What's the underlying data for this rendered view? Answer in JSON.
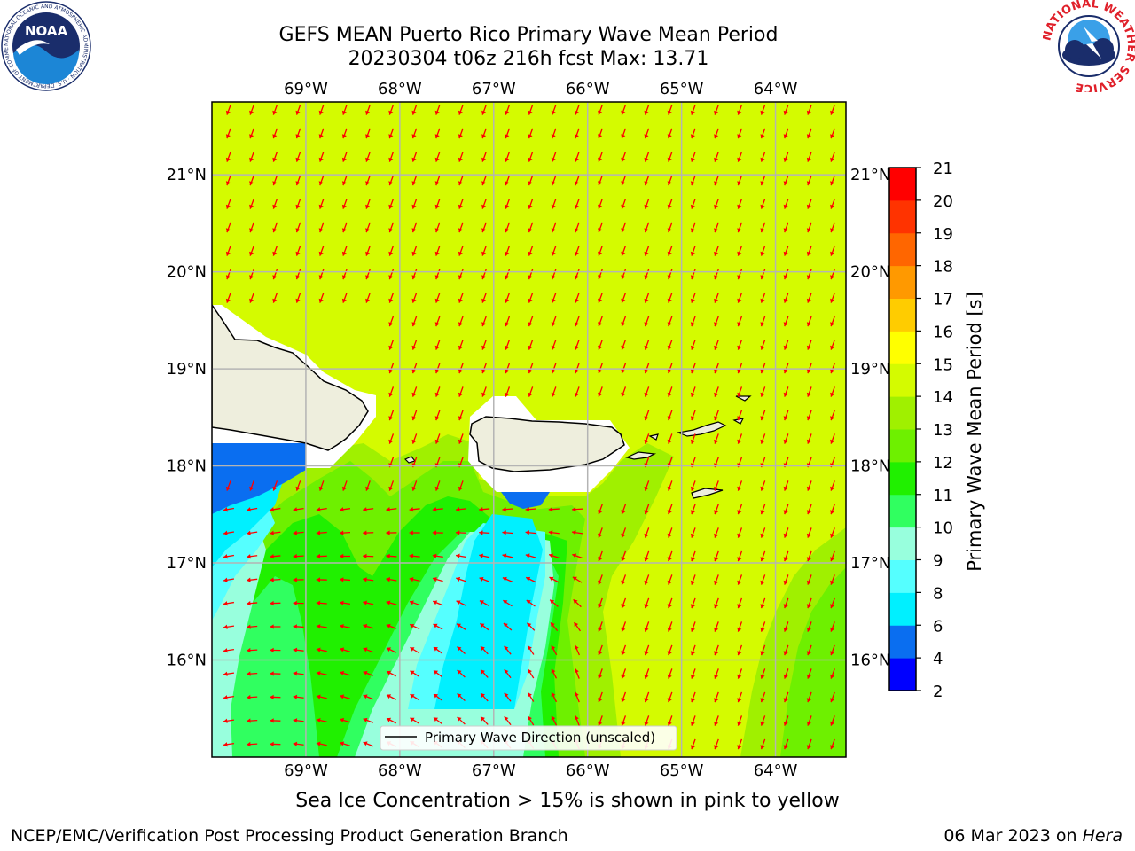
{
  "header": {
    "title_line1": "GEFS MEAN Puerto Rico Primary Wave Mean Period",
    "title_line2": "20230304 t06z 216h fcst   Max: 13.71"
  },
  "map": {
    "lon_ticks": [
      "69°W",
      "68°W",
      "67°W",
      "66°W",
      "65°W",
      "64°W"
    ],
    "lat_ticks": [
      "21°N",
      "20°N",
      "19°N",
      "18°N",
      "17°N",
      "16°N"
    ],
    "lon_range": [
      -70.0,
      -63.25
    ],
    "lat_range": [
      15.0,
      21.75
    ],
    "field": "Primary Wave Mean Period",
    "arrow_color": "#ff0000",
    "land_color": "#eeeedd",
    "legend_label": "Primary Wave Direction (unscaled)"
  },
  "colorbar": {
    "label": "Primary Wave Mean Period [s]",
    "ticks": [
      "2",
      "4",
      "6",
      "8",
      "9",
      "10",
      "11",
      "12",
      "13",
      "14",
      "15",
      "16",
      "17",
      "18",
      "19",
      "20",
      "21"
    ],
    "colors": [
      "#0000ff",
      "#0a6ef0",
      "#00f0ff",
      "#55ffff",
      "#98ffdd",
      "#30ff60",
      "#20f000",
      "#6ef000",
      "#a0f000",
      "#d4fb00",
      "#ffff00",
      "#ffcc00",
      "#ff9900",
      "#ff6600",
      "#ff3300",
      "#ff0000"
    ]
  },
  "footer": {
    "caption": "Sea Ice Concentration > 15% is shown in pink to yellow",
    "branch": "NCEP/EMC/Verification Post Processing Product Generation Branch",
    "run_date": "06 Mar 2023 on",
    "host": "Hera"
  },
  "logos": {
    "left": "NOAA",
    "left_ring": "NATIONAL OCEANIC AND ATMOSPHERIC ADMINISTRATION · U.S. DEPARTMENT OF COMMERCE",
    "right_ring": "NATIONAL WEATHER SERVICE"
  }
}
